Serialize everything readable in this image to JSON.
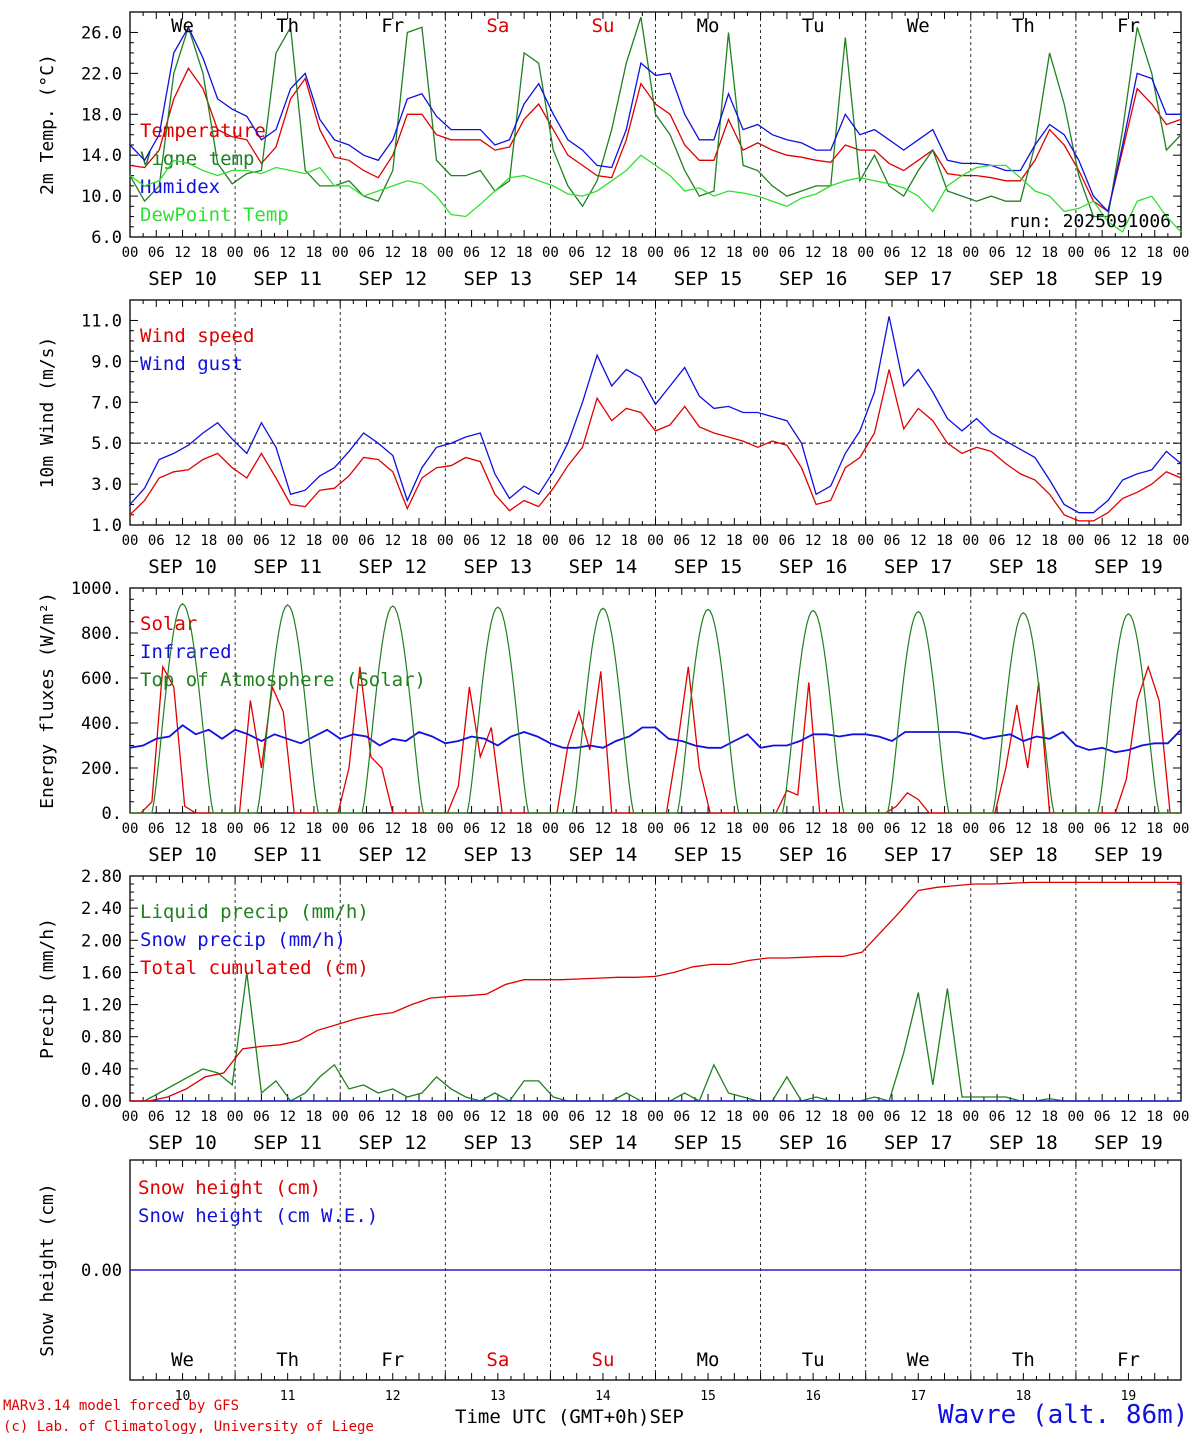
{
  "colors": {
    "red": "#e00000",
    "blue": "#1010e0",
    "green": "#208020",
    "lime": "#30e030",
    "weekend": "#e00000"
  },
  "days": {
    "names": [
      "We",
      "Th",
      "Fr",
      "Sa",
      "Su",
      "Mo",
      "Tu",
      "We",
      "Th",
      "Fr"
    ],
    "weekend": [
      false,
      false,
      false,
      true,
      true,
      false,
      false,
      false,
      false,
      false
    ],
    "dates": [
      "SEP 10",
      "SEP 11",
      "SEP 12",
      "SEP 13",
      "SEP 14",
      "SEP 15",
      "SEP 16",
      "SEP 17",
      "SEP 18",
      "SEP 19"
    ],
    "daynums": [
      "10",
      "11",
      "12",
      "13",
      "14",
      "15",
      "16",
      "17",
      "18",
      "19"
    ],
    "hour_labels": [
      "00",
      "06",
      "12",
      "18"
    ],
    "end_label": "00"
  },
  "run_label": "run: 2025091006",
  "xaxis_title": "Time UTC (GMT+0h)",
  "month_label": "SEP",
  "footer": {
    "model": "MARv3.14 model forced by GFS",
    "credit": "(c) Lab. of Climatology, University of Liege",
    "station": "Wavre (alt. 86m)"
  },
  "chart_data": [
    {
      "id": "temp",
      "type": "line",
      "ylabel": "2m Temp. (°C)",
      "ylim": [
        6,
        28
      ],
      "yticks": [
        6,
        10,
        14,
        18,
        22,
        26
      ],
      "ytick_labels": [
        "6.0",
        "10.0",
        "14.0",
        "18.0",
        "22.0",
        "26.0"
      ],
      "x": "hours since SEP 10 00 UTC, 3-hourly, 0..240",
      "series": [
        {
          "name": "Temperature",
          "color": "red",
          "values": [
            13,
            12.8,
            14.5,
            19.5,
            22.5,
            20.5,
            16.5,
            15.8,
            15.5,
            13.2,
            14.8,
            19.5,
            21.5,
            16.5,
            13.8,
            13.5,
            12.5,
            11.8,
            14,
            18,
            18,
            16,
            15.5,
            15.5,
            15.5,
            14.5,
            14.8,
            17.5,
            19,
            16.5,
            14,
            13,
            12,
            11.8,
            15.5,
            21,
            19,
            18,
            15,
            13.5,
            13.5,
            17.5,
            14.5,
            15.2,
            14.5,
            14,
            13.8,
            13.5,
            13.3,
            15,
            14.5,
            14.5,
            13.2,
            12.5,
            13.5,
            14.5,
            12.2,
            12,
            12,
            11.8,
            11.5,
            11.5,
            13.5,
            16.5,
            15,
            12.5,
            9.5,
            8.5,
            14.5,
            20.5,
            19,
            17,
            17.5
          ]
        },
        {
          "name": "Vigne temp",
          "color": "green",
          "values": [
            12,
            9.5,
            11,
            22,
            26.5,
            22,
            13.2,
            11.2,
            12.2,
            12.5,
            24,
            26.5,
            12.5,
            11,
            11,
            11.5,
            10,
            9.5,
            12.5,
            26,
            26.5,
            13.5,
            12,
            12,
            12.5,
            10.5,
            11.5,
            24,
            23,
            14.5,
            11,
            9,
            11.5,
            16.5,
            23,
            27.5,
            18,
            16,
            12.5,
            10,
            10.5,
            26,
            13,
            12.5,
            11,
            10,
            10.5,
            11,
            11,
            25.5,
            11.5,
            14,
            11,
            10,
            12.5,
            14.5,
            10.5,
            10,
            9.5,
            10,
            9.5,
            9.5,
            15,
            24,
            19,
            12,
            8,
            8,
            16.5,
            26.5,
            22,
            14.5,
            16
          ]
        },
        {
          "name": "Humidex",
          "color": "blue",
          "values": [
            15,
            13.5,
            16,
            24,
            26.5,
            23.5,
            19.5,
            18.5,
            17.8,
            15.5,
            16.5,
            20.5,
            22,
            17.5,
            15.5,
            15,
            14,
            13.5,
            15.5,
            19.5,
            20,
            17.8,
            16.5,
            16.5,
            16.5,
            15,
            15.5,
            19,
            21,
            18,
            15.5,
            14.5,
            13,
            12.8,
            16.5,
            23,
            21.8,
            22,
            18,
            15.5,
            15.5,
            20,
            16.5,
            17,
            16,
            15.5,
            15.2,
            14.5,
            14.5,
            18,
            16,
            16.5,
            15.5,
            14.5,
            15.5,
            16.5,
            13.5,
            13.2,
            13.2,
            13,
            12.5,
            12.5,
            15,
            17,
            16,
            13.5,
            10,
            8.5,
            15,
            22,
            21.5,
            18,
            18
          ]
        },
        {
          "name": "DewPoint Temp",
          "color": "lime",
          "values": [
            12,
            11,
            11.5,
            13.5,
            13.2,
            12.5,
            12,
            12.5,
            12.5,
            12.2,
            12.8,
            12.5,
            12.2,
            12.8,
            11,
            11,
            10,
            10.5,
            11,
            11.5,
            11.2,
            10,
            8.2,
            8,
            9.2,
            10.5,
            11.8,
            12,
            11.5,
            11,
            10.2,
            10,
            10.5,
            11.5,
            12.5,
            14,
            13,
            12,
            10.5,
            10.8,
            10,
            10.5,
            10.3,
            10,
            9.5,
            9,
            9.8,
            10.2,
            11,
            11.5,
            11.8,
            11.5,
            11.2,
            10.8,
            10,
            8.5,
            11,
            12,
            12.8,
            13,
            13,
            11.8,
            10.5,
            10,
            8.5,
            8.8,
            9.5,
            7.5,
            6.5,
            9.5,
            10,
            8,
            6.5
          ]
        }
      ]
    },
    {
      "id": "wind",
      "type": "line",
      "ylabel": "10m Wind (m/s)",
      "ylim": [
        1,
        12
      ],
      "yticks": [
        1,
        3,
        5,
        7,
        9,
        11
      ],
      "ytick_labels": [
        "1.0",
        "3.0",
        "5.0",
        "7.0",
        "9.0",
        "11.0"
      ],
      "reference_line": 5,
      "series": [
        {
          "name": "Wind speed",
          "color": "red",
          "values": [
            1.5,
            2.2,
            3.3,
            3.6,
            3.7,
            4.2,
            4.5,
            3.8,
            3.3,
            4.5,
            3.3,
            2.0,
            1.9,
            2.7,
            2.8,
            3.4,
            4.3,
            4.2,
            3.6,
            1.8,
            3.3,
            3.8,
            3.9,
            4.3,
            4.1,
            2.5,
            1.7,
            2.2,
            1.9,
            2.8,
            3.9,
            4.8,
            7.2,
            6.1,
            6.7,
            6.5,
            5.6,
            5.9,
            6.8,
            5.8,
            5.5,
            5.3,
            5.1,
            4.8,
            5.1,
            4.9,
            3.8,
            2.0,
            2.2,
            3.8,
            4.3,
            5.5,
            8.6,
            5.7,
            6.7,
            6.1,
            5.0,
            4.5,
            4.8,
            4.6,
            4.0,
            3.5,
            3.2,
            2.5,
            1.5,
            1.2,
            1.2,
            1.6,
            2.3,
            2.6,
            3.0,
            3.6,
            3.3
          ]
        },
        {
          "name": "Wind gust",
          "color": "blue",
          "values": [
            2.0,
            2.8,
            4.2,
            4.5,
            4.9,
            5.5,
            6.0,
            5.2,
            4.5,
            6.0,
            4.8,
            2.5,
            2.7,
            3.4,
            3.8,
            4.6,
            5.5,
            5.0,
            4.4,
            2.2,
            3.8,
            4.8,
            5.0,
            5.3,
            5.5,
            3.5,
            2.3,
            2.9,
            2.5,
            3.6,
            5.0,
            7.0,
            9.3,
            7.8,
            8.6,
            8.2,
            6.9,
            7.8,
            8.7,
            7.3,
            6.7,
            6.8,
            6.5,
            6.5,
            6.3,
            6.1,
            5.0,
            2.5,
            2.9,
            4.5,
            5.6,
            7.5,
            11.2,
            7.8,
            8.6,
            7.5,
            6.2,
            5.6,
            6.2,
            5.5,
            5.1,
            4.7,
            4.3,
            3.2,
            2.0,
            1.6,
            1.6,
            2.2,
            3.2,
            3.5,
            3.7,
            4.6,
            4.0
          ]
        }
      ]
    },
    {
      "id": "energy",
      "type": "line",
      "ylabel": "Energy fluxes (W/m²)",
      "ylim": [
        0,
        1000
      ],
      "yticks": [
        0,
        200,
        400,
        600,
        800,
        1000
      ],
      "ytick_labels": [
        "0.",
        "200.",
        "400.",
        "600.",
        "800.",
        "1000."
      ],
      "series": [
        {
          "name": "Solar",
          "color": "red",
          "values": [
            0,
            0,
            50,
            650,
            560,
            30,
            0,
            0,
            0,
            0,
            0,
            500,
            200,
            560,
            450,
            0,
            0,
            0,
            0,
            0,
            200,
            650,
            250,
            200,
            0,
            0,
            0,
            0,
            0,
            0,
            120,
            560,
            250,
            380,
            0,
            0,
            0,
            0,
            0,
            0,
            300,
            450,
            280,
            630,
            0,
            0,
            0,
            0,
            0,
            0,
            300,
            650,
            200,
            0,
            0,
            0,
            0,
            0,
            0,
            0,
            100,
            80,
            580,
            0,
            0,
            0,
            0,
            0,
            0,
            0,
            30,
            90,
            60,
            0,
            0,
            0,
            0,
            0,
            0,
            0,
            200,
            480,
            200,
            580,
            0,
            0,
            0,
            0,
            0,
            0,
            0,
            150,
            500,
            650,
            500,
            0,
            0
          ]
        },
        {
          "name": "Infrared",
          "color": "blue",
          "values": [
            290,
            300,
            330,
            340,
            390,
            350,
            370,
            330,
            370,
            350,
            320,
            350,
            330,
            310,
            340,
            370,
            330,
            350,
            340,
            300,
            330,
            320,
            360,
            340,
            310,
            320,
            340,
            330,
            300,
            340,
            360,
            340,
            310,
            290,
            290,
            300,
            290,
            320,
            340,
            380,
            380,
            330,
            320,
            300,
            290,
            290,
            320,
            350,
            290,
            300,
            300,
            320,
            350,
            350,
            340,
            350,
            350,
            340,
            320,
            360,
            360,
            360,
            360,
            360,
            350,
            330,
            340,
            350,
            320,
            340,
            330,
            360,
            300,
            280,
            290,
            270,
            280,
            300,
            310,
            310,
            370
          ]
        },
        {
          "name": "Top of Atmosphere (Solar)",
          "color": "green",
          "values": []
        }
      ]
    },
    {
      "id": "precip",
      "type": "line",
      "ylabel": "Precip (mm/h)",
      "ylim": [
        0,
        2.8
      ],
      "yticks": [
        0,
        0.4,
        0.8,
        1.2,
        1.6,
        2.0,
        2.4,
        2.8
      ],
      "ytick_labels": [
        "0.00",
        "0.40",
        "0.80",
        "1.20",
        "1.60",
        "2.00",
        "2.40",
        "2.80"
      ],
      "series": [
        {
          "name": "Liquid precip (mm/h)",
          "color": "green",
          "values": [
            0,
            0,
            0.1,
            0.2,
            0.3,
            0.4,
            0.35,
            0.2,
            1.6,
            0.1,
            0.25,
            0,
            0.1,
            0.3,
            0.45,
            0.15,
            0.2,
            0.1,
            0.15,
            0.05,
            0.1,
            0.3,
            0.15,
            0.05,
            0,
            0.1,
            0,
            0.25,
            0.25,
            0.05,
            0,
            0,
            0,
            0,
            0.1,
            0,
            0,
            0,
            0.1,
            0,
            0.45,
            0.1,
            0.05,
            0,
            0,
            0.3,
            0,
            0.05,
            0,
            0,
            0,
            0.05,
            0,
            0.6,
            1.35,
            0.2,
            1.4,
            0.05,
            0.05,
            0.05,
            0.05,
            0,
            0,
            0.03,
            0,
            0,
            0,
            0,
            0,
            0,
            0,
            0,
            0
          ]
        },
        {
          "name": "Snow precip (mm/h)",
          "color": "blue",
          "values": [
            0,
            0
          ]
        },
        {
          "name": "Total cumulated (cm)",
          "color": "red",
          "values": [
            0,
            0,
            0.05,
            0.15,
            0.3,
            0.35,
            0.65,
            0.68,
            0.7,
            0.75,
            0.88,
            0.95,
            1.02,
            1.07,
            1.1,
            1.2,
            1.28,
            1.3,
            1.31,
            1.33,
            1.45,
            1.51,
            1.51,
            1.51,
            1.52,
            1.53,
            1.54,
            1.54,
            1.55,
            1.6,
            1.67,
            1.7,
            1.7,
            1.75,
            1.78,
            1.78,
            1.79,
            1.8,
            1.8,
            1.85,
            2.1,
            2.35,
            2.62,
            2.66,
            2.68,
            2.7,
            2.7,
            2.71,
            2.72,
            2.72,
            2.72,
            2.72,
            2.72,
            2.72,
            2.72,
            2.72,
            2.72
          ]
        }
      ]
    },
    {
      "id": "snow",
      "type": "line",
      "ylabel": "Snow height (cm)",
      "ylim": [
        -1,
        1
      ],
      "yticks": [
        0
      ],
      "ytick_labels": [
        "0.00"
      ],
      "series": [
        {
          "name": "Snow height (cm)",
          "color": "red",
          "values": [
            0,
            0
          ]
        },
        {
          "name": "Snow height (cm W.E.)",
          "color": "blue",
          "values": [
            0,
            0
          ]
        }
      ]
    }
  ]
}
